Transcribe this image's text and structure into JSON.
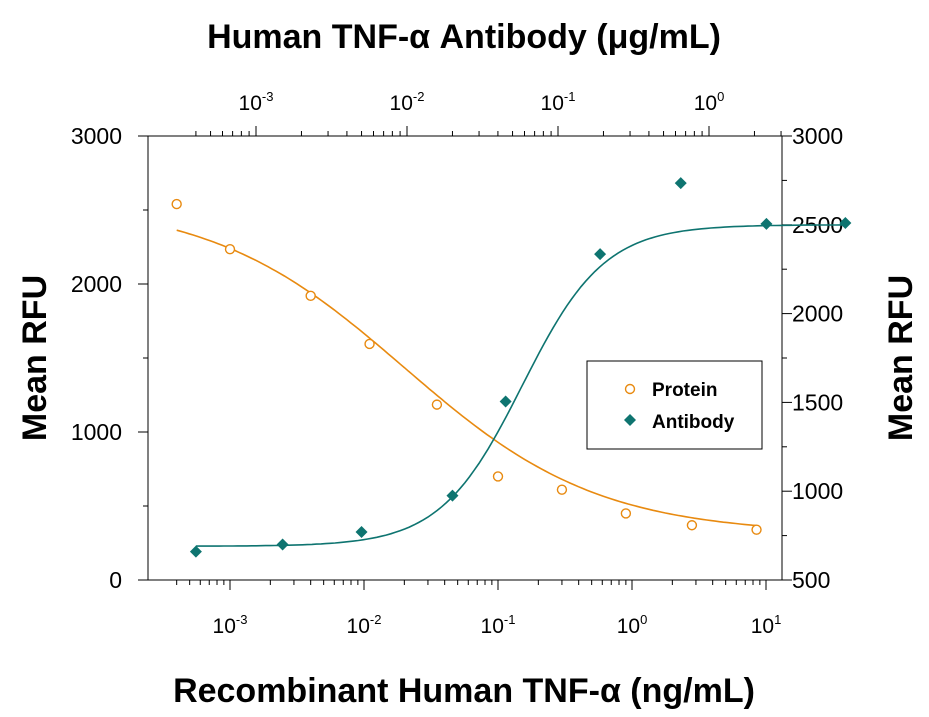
{
  "chart_data": {
    "type": "scatter",
    "top_title": "Human TNF-α Antibody (μg/mL)",
    "xlabel": "Recombinant Human TNF-α (ng/mL)",
    "ylabel_left": "Mean RFU",
    "ylabel_right": "Mean RFU",
    "x_scale": "log",
    "x_bottom_ticks": [
      0.001,
      0.01,
      0.1,
      1,
      10
    ],
    "x_bottom_tick_labels": [
      {
        "base": "10",
        "exp": "-3"
      },
      {
        "base": "10",
        "exp": "-2"
      },
      {
        "base": "10",
        "exp": "-1"
      },
      {
        "base": "10",
        "exp": "0"
      },
      {
        "base": "10",
        "exp": "1"
      }
    ],
    "x_top_ticks": [
      0.001,
      0.01,
      0.1,
      1
    ],
    "x_top_tick_labels": [
      {
        "base": "10",
        "exp": "-3"
      },
      {
        "base": "10",
        "exp": "-2"
      },
      {
        "base": "10",
        "exp": "-1"
      },
      {
        "base": "10",
        "exp": "0"
      }
    ],
    "y_left_ticks": [
      0,
      1000,
      2000,
      3000
    ],
    "y_left_ylim": [
      0,
      3000
    ],
    "y_right_ticks": [
      500,
      1000,
      1500,
      2000,
      2500,
      3000
    ],
    "y_right_ylim": [
      500,
      3000
    ],
    "legend_position": "center-right",
    "series": [
      {
        "name": "Protein",
        "marker": "open-circle",
        "color": "#E88A10",
        "axis": "bottom-left",
        "points": [
          {
            "x": 0.0004,
            "y": 2540
          },
          {
            "x": 0.001,
            "y": 2235
          },
          {
            "x": 0.004,
            "y": 1920
          },
          {
            "x": 0.011,
            "y": 1595
          },
          {
            "x": 0.035,
            "y": 1185
          },
          {
            "x": 0.1,
            "y": 700
          },
          {
            "x": 0.3,
            "y": 610
          },
          {
            "x": 0.9,
            "y": 450
          },
          {
            "x": 2.8,
            "y": 370
          },
          {
            "x": 8.5,
            "y": 340
          }
        ],
        "fit": {
          "bottom": 310,
          "top": 2560,
          "ec50": 0.02,
          "hill": -0.6,
          "x_from": 0.0004,
          "x_to": 8.5
        }
      },
      {
        "name": "Antibody",
        "marker": "filled-diamond",
        "color": "#0E7470",
        "axis": "top-right",
        "points": [
          {
            "x": 0.0004,
            "y": 660
          },
          {
            "x": 0.0015,
            "y": 700
          },
          {
            "x": 0.005,
            "y": 770
          },
          {
            "x": 0.02,
            "y": 975
          },
          {
            "x": 0.045,
            "y": 1505
          },
          {
            "x": 0.19,
            "y": 2335
          },
          {
            "x": 0.65,
            "y": 2735
          },
          {
            "x": 2.4,
            "y": 2505
          },
          {
            "x": 8,
            "y": 2510
          }
        ],
        "fit": {
          "bottom": 690,
          "top": 2500,
          "ec50": 0.058,
          "hill": 1.6,
          "x_from": 0.0004,
          "x_to": 8
        }
      }
    ]
  }
}
